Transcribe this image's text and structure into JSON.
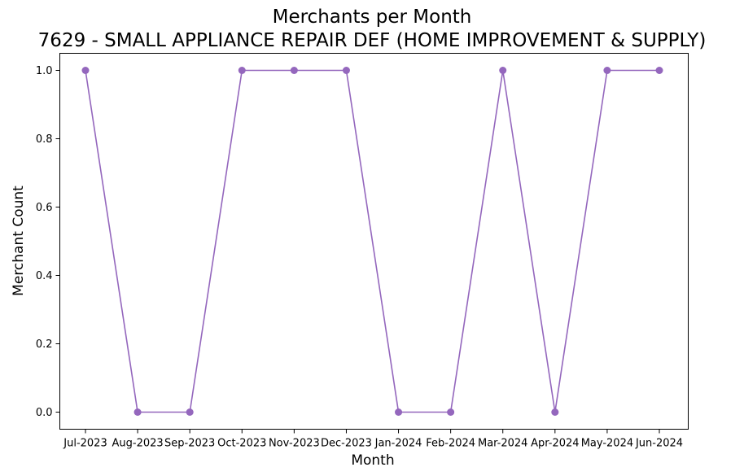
{
  "chart_data": {
    "type": "line",
    "title": "Merchants per Month",
    "subtitle": "7629 - SMALL APPLIANCE REPAIR DEF (HOME IMPROVEMENT & SUPPLY)",
    "xlabel": "Month",
    "ylabel": "Merchant Count",
    "categories": [
      "Jul-2023",
      "Aug-2023",
      "Sep-2023",
      "Oct-2023",
      "Nov-2023",
      "Dec-2023",
      "Jan-2024",
      "Feb-2024",
      "Mar-2024",
      "Apr-2024",
      "May-2024",
      "Jun-2024"
    ],
    "series": [
      {
        "values": [
          1,
          0,
          0,
          1,
          1,
          1,
          0,
          0,
          1,
          0,
          1,
          1
        ],
        "color": "#9467bd",
        "marker": "circle"
      }
    ],
    "ylim": [
      -0.05,
      1.05
    ],
    "yticks": [
      "0.0",
      "0.2",
      "0.4",
      "0.6",
      "0.8",
      "1.0"
    ],
    "grid": false,
    "legend": "none"
  }
}
